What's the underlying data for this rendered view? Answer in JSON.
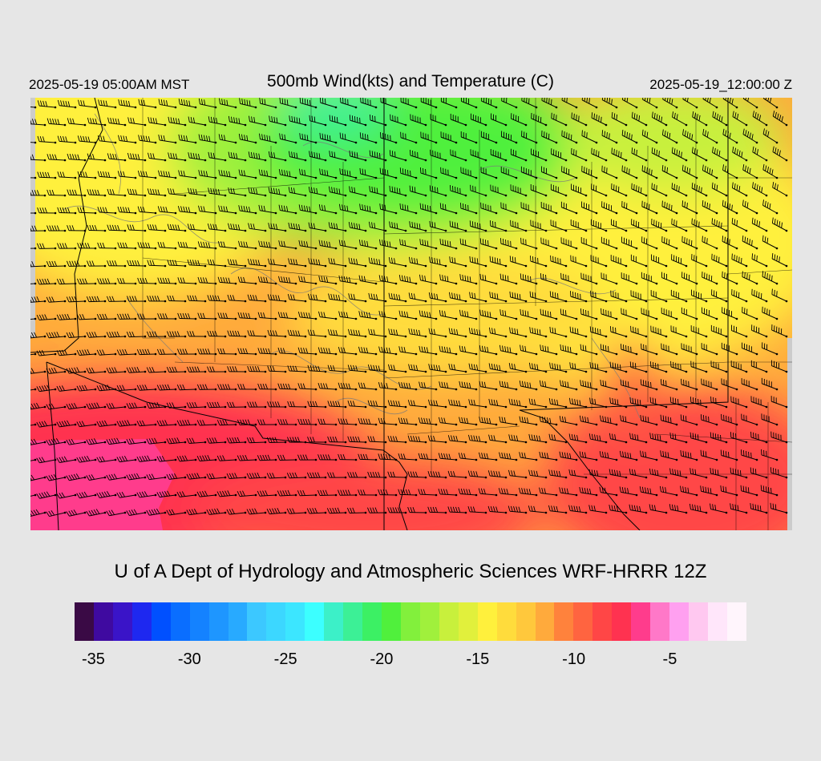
{
  "header": {
    "valid_local": "2025-05-19 05:00AM MST",
    "title": "500mb Wind(kts) and Temperature (C)",
    "valid_utc": "2025-05-19_12:00:00 Z"
  },
  "credit": "U of A Dept of Hydrology and Atmospheric Sciences WRF-HRRR 12Z",
  "colorbar": {
    "colors": [
      "#3a0a45",
      "#3f0aa0",
      "#3a14c8",
      "#1e28f0",
      "#0050ff",
      "#0a6eff",
      "#1482ff",
      "#1e96ff",
      "#28aaff",
      "#3cc8ff",
      "#3cd7ff",
      "#3ce6ff",
      "#3cffff",
      "#3cf0c8",
      "#3cf096",
      "#3cf064",
      "#50f03c",
      "#82f03c",
      "#a0f03c",
      "#c8f03c",
      "#e1f03c",
      "#fff03c",
      "#ffdc3c",
      "#ffc83c",
      "#ffaa3c",
      "#ff823c",
      "#ff6440",
      "#ff4646",
      "#ff3250",
      "#ff3c8c",
      "#ff78c8",
      "#ffa0f0",
      "#ffc8f0",
      "#ffe6fa",
      "#fff5fc"
    ],
    "labels": [
      {
        "text": "-35",
        "frac": 0.028
      },
      {
        "text": "-30",
        "frac": 0.171
      },
      {
        "text": "-25",
        "frac": 0.314
      },
      {
        "text": "-20",
        "frac": 0.457
      },
      {
        "text": "-15",
        "frac": 0.6
      },
      {
        "text": "-10",
        "frac": 0.743
      },
      {
        "text": "-5",
        "frac": 0.886
      }
    ]
  },
  "map": {
    "temperature_fill": {
      "green_core": "#3cf064",
      "cyan_core": "#3cf096",
      "yellow": "#fff03c",
      "orange": "#ffaa3c",
      "red": "#ff3250",
      "pink": "#ff3c8c"
    },
    "border_color": "#000000",
    "contour_color": "#7a7a7a"
  }
}
